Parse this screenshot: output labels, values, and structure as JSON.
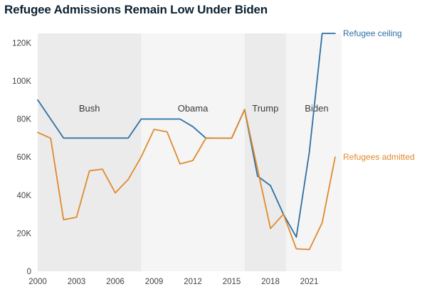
{
  "chart_data": {
    "type": "line",
    "title": "Refugee Admissions Remain Low Under Biden",
    "xlabel": "",
    "ylabel": "",
    "xlim": [
      2000,
      2023.5
    ],
    "ylim": [
      0,
      125000
    ],
    "x_ticks": [
      2000,
      2003,
      2006,
      2009,
      2012,
      2015,
      2018,
      2021
    ],
    "x_tick_labels": [
      "2000",
      "2003",
      "2006",
      "2009",
      "2012",
      "2015",
      "2018",
      "2021"
    ],
    "y_ticks": [
      0,
      20000,
      40000,
      60000,
      80000,
      100000,
      120000
    ],
    "y_tick_labels": [
      "0",
      "20K",
      "40K",
      "60K",
      "80K",
      "100K",
      "120K"
    ],
    "eras": [
      {
        "name": "Bush",
        "start": 2000,
        "end": 2008,
        "shade": "#ebebeb"
      },
      {
        "name": "Obama",
        "start": 2008,
        "end": 2016,
        "shade": "#f5f5f5"
      },
      {
        "name": "Trump",
        "start": 2016,
        "end": 2019.2,
        "shade": "#ebebeb"
      },
      {
        "name": "Biden",
        "start": 2019.2,
        "end": 2023.5,
        "shade": "#f5f5f5"
      }
    ],
    "series": [
      {
        "name": "Refugee ceiling",
        "color": "#2e6fa3",
        "x": [
          2000,
          2001,
          2002,
          2003,
          2004,
          2005,
          2006,
          2007,
          2008,
          2009,
          2010,
          2011,
          2012,
          2013,
          2014,
          2015,
          2016,
          2017,
          2018,
          2019,
          2020,
          2021,
          2022,
          2023
        ],
        "values": [
          90000,
          80000,
          70000,
          70000,
          70000,
          70000,
          70000,
          70000,
          80000,
          80000,
          80000,
          80000,
          76000,
          70000,
          70000,
          70000,
          85000,
          50000,
          45000,
          30000,
          18000,
          62500,
          125000,
          125000
        ]
      },
      {
        "name": "Refugees admitted",
        "color": "#e08a2e",
        "x": [
          2000,
          2001,
          2002,
          2003,
          2004,
          2005,
          2006,
          2007,
          2008,
          2009,
          2010,
          2011,
          2012,
          2013,
          2014,
          2015,
          2016,
          2017,
          2018,
          2019,
          2020,
          2021,
          2022,
          2023
        ],
        "values": [
          73000,
          69900,
          27100,
          28400,
          52800,
          53700,
          41200,
          48300,
          60100,
          74600,
          73300,
          56400,
          58200,
          69900,
          70000,
          70000,
          85000,
          53700,
          22500,
          30000,
          11800,
          11400,
          25500,
          60000
        ]
      }
    ]
  }
}
